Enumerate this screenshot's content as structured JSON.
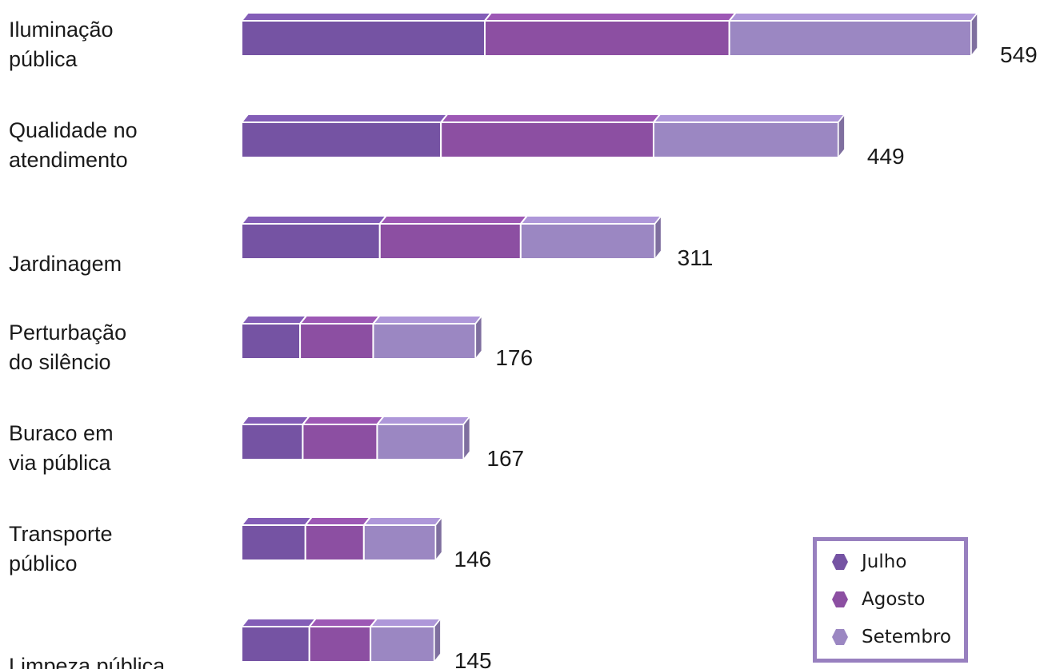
{
  "chart_data": {
    "type": "bar",
    "orientation": "horizontal",
    "stacked": true,
    "categories": [
      [
        "Iluminação",
        "pública"
      ],
      [
        "Qualidade no",
        "atendimento"
      ],
      [
        "Jardinagem"
      ],
      [
        "Perturbação",
        "do silêncio"
      ],
      [
        "Buraco em",
        "via pública"
      ],
      [
        "Transporte",
        "público"
      ],
      [
        "Limpeza pública"
      ]
    ],
    "totals": [
      549,
      449,
      311,
      176,
      167,
      146,
      145
    ],
    "series": [
      {
        "name": "Julho",
        "color": "#7553a3",
        "values": [
          183,
          150,
          104,
          44,
          46,
          48,
          51
        ]
      },
      {
        "name": "Agosto",
        "color": "#8c4fa2",
        "values": [
          184,
          160,
          106,
          55,
          56,
          44,
          46
        ]
      },
      {
        "name": "Setembro",
        "color": "#9b87c2",
        "values": [
          182,
          139,
          101,
          77,
          65,
          54,
          48
        ]
      }
    ],
    "grid": false,
    "legend_position": "bottom-right"
  }
}
